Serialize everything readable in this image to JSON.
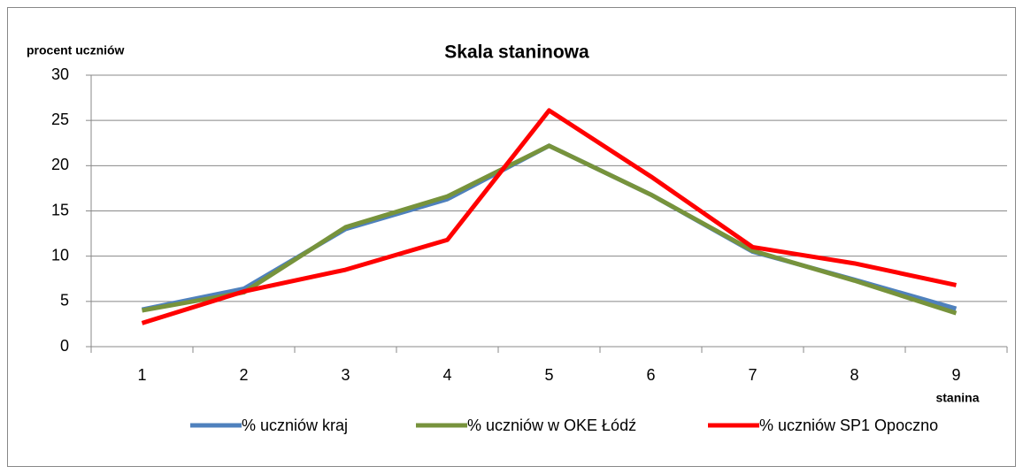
{
  "chart_data": {
    "type": "line",
    "title": "Skala staninowa",
    "y_label": "procent uczniów",
    "x_label": "stanina",
    "categories": [
      "1",
      "2",
      "3",
      "4",
      "5",
      "6",
      "7",
      "8",
      "9"
    ],
    "series": [
      {
        "name": "% uczniów kraj",
        "color": "#4f81bd",
        "values": [
          4.1,
          6.4,
          13.0,
          16.3,
          22.2,
          16.8,
          10.5,
          7.4,
          4.2
        ]
      },
      {
        "name": "% uczniów w OKE Łódź",
        "color": "#77933c",
        "values": [
          4.0,
          6.0,
          13.2,
          16.6,
          22.2,
          16.8,
          10.6,
          7.3,
          3.7
        ]
      },
      {
        "name": "% uczniów SP1 Opoczno",
        "color": "#ff0000",
        "values": [
          2.6,
          6.1,
          8.5,
          11.8,
          26.1,
          18.8,
          11.0,
          9.2,
          6.8
        ]
      }
    ],
    "ylim": [
      0,
      30
    ],
    "yticks": [
      0,
      5,
      10,
      15,
      20,
      25,
      30
    ],
    "grid": true,
    "legend": "bottom"
  }
}
